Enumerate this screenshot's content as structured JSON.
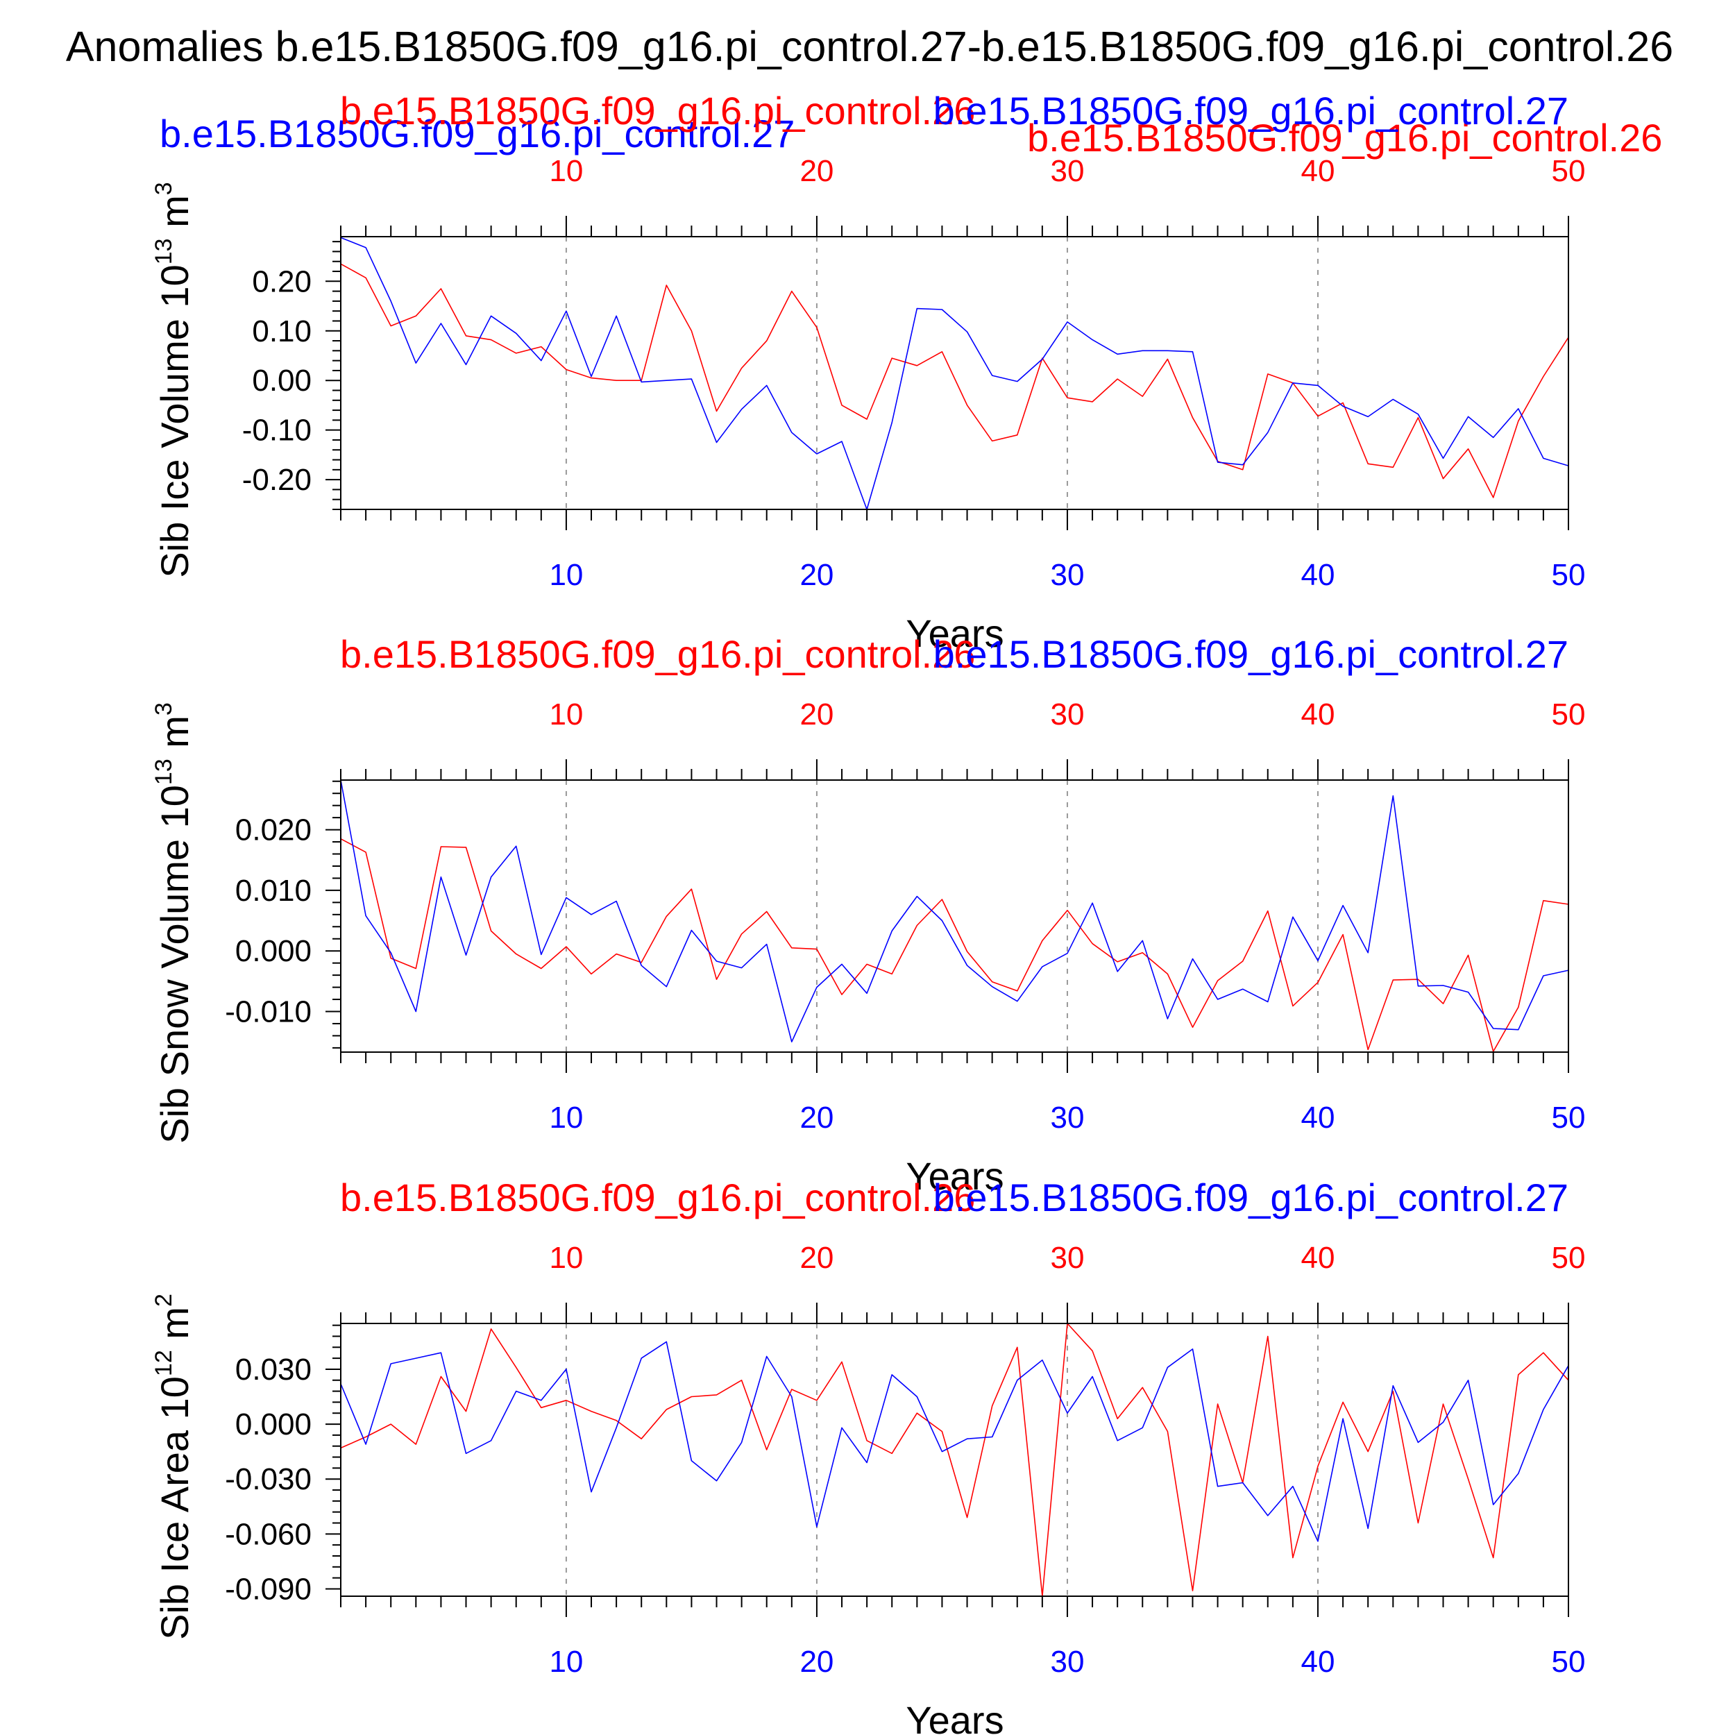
{
  "page_title": "Anomalies b.e15.B1850G.f09_g16.pi_control.27-b.e15.B1850G.f09_g16.pi_control.26",
  "top_overlay_label": "b.e15.B1850G.f09_g16.pi_control.27",
  "top_overlay_label_red": "b.e15.B1850G.f09_g16.pi_control.26",
  "colors": {
    "red_series": "#ff0000",
    "blue_series": "#0000ff",
    "axis": "#000000",
    "grid": "#999999"
  },
  "chart_data": [
    {
      "type": "line",
      "ylabel": "Sib Ice Volume 10",
      "yunit_exp": "13",
      "yunit_tail": "m",
      "yunit_tail_exp": "3",
      "xlabel": "Years",
      "xlim": [
        1,
        50
      ],
      "ylim": [
        -0.26,
        0.29
      ],
      "yticks": [
        -0.2,
        -0.1,
        0.0,
        0.1,
        0.2
      ],
      "ytick_labels": [
        "-0.20",
        "-0.10",
        "0.00",
        "0.10",
        "0.20"
      ],
      "xticks": [
        10,
        20,
        30,
        40,
        50
      ],
      "xtick_labels": [
        "10",
        "20",
        "30",
        "40",
        "50"
      ],
      "series": [
        {
          "name": "b.e15.B1850G.f09_g16.pi_control.26",
          "color": "#ff0000",
          "values": [
            0.235,
            0.207,
            0.11,
            0.13,
            0.185,
            0.09,
            0.082,
            0.055,
            0.068,
            0.022,
            0.005,
            0.0,
            0.0,
            0.192,
            0.1,
            -0.062,
            0.025,
            0.08,
            0.18,
            0.107,
            -0.05,
            -0.078,
            0.045,
            0.03,
            0.058,
            -0.05,
            -0.122,
            -0.11,
            0.045,
            -0.035,
            -0.043,
            0.003,
            -0.032,
            0.043,
            -0.075,
            -0.163,
            -0.18,
            0.013,
            -0.005,
            -0.072,
            -0.045,
            -0.168,
            -0.175,
            -0.075,
            -0.198,
            -0.138,
            -0.236,
            -0.082,
            0.008,
            0.087
          ]
        },
        {
          "name": "b.e15.B1850G.f09_g16.pi_control.27",
          "color": "#0000ff",
          "values": [
            0.288,
            0.268,
            0.16,
            0.035,
            0.115,
            0.032,
            0.13,
            0.095,
            0.04,
            0.14,
            0.008,
            0.13,
            -0.003,
            0.0,
            0.003,
            -0.125,
            -0.058,
            -0.01,
            -0.105,
            -0.148,
            -0.123,
            -0.26,
            -0.085,
            0.145,
            0.143,
            0.098,
            0.01,
            -0.002,
            0.043,
            0.118,
            0.082,
            0.053,
            0.06,
            0.06,
            0.058,
            -0.165,
            -0.17,
            -0.105,
            -0.005,
            -0.01,
            -0.052,
            -0.073,
            -0.038,
            -0.068,
            -0.157,
            -0.073,
            -0.115,
            -0.057,
            -0.157,
            -0.172
          ]
        }
      ]
    },
    {
      "type": "line",
      "ylabel": "Sib Snow Volume 10",
      "yunit_exp": "13",
      "yunit_tail": "m",
      "yunit_tail_exp": "3",
      "xlabel": "Years",
      "xlim": [
        1,
        50
      ],
      "ylim": [
        -0.0167,
        0.0282
      ],
      "yticks": [
        -0.01,
        0.0,
        0.01,
        0.02
      ],
      "ytick_labels": [
        "-0.010",
        "0.000",
        "0.010",
        "0.020"
      ],
      "xticks": [
        10,
        20,
        30,
        40,
        50
      ],
      "xtick_labels": [
        "10",
        "20",
        "30",
        "40",
        "50"
      ],
      "series": [
        {
          "name": "b.e15.B1850G.f09_g16.pi_control.26",
          "color": "#ff0000",
          "values": [
            0.0185,
            0.0163,
            -0.0012,
            -0.0029,
            0.0172,
            0.0171,
            0.0033,
            -0.0005,
            -0.0029,
            0.0007,
            -0.0038,
            -0.0005,
            -0.0019,
            0.0057,
            0.0102,
            -0.0047,
            0.0028,
            0.0065,
            0.0005,
            0.0003,
            -0.0072,
            -0.0022,
            -0.0038,
            0.0042,
            0.0085,
            -0.0001,
            -0.0051,
            -0.0066,
            0.0017,
            0.0067,
            0.0012,
            -0.0018,
            -0.0003,
            -0.0038,
            -0.0126,
            -0.0049,
            -0.0017,
            0.0066,
            -0.0091,
            -0.0052,
            0.0027,
            -0.0163,
            -0.0048,
            -0.0047,
            -0.0087,
            -0.0007,
            -0.0166,
            -0.0093,
            0.0083,
            0.0077
          ]
        },
        {
          "name": "b.e15.B1850G.f09_g16.pi_control.27",
          "color": "#0000ff",
          "values": [
            0.0282,
            0.0058,
            -0.0003,
            -0.01,
            0.0122,
            -0.0007,
            0.0122,
            0.0173,
            -0.0006,
            0.0088,
            0.006,
            0.0082,
            -0.0024,
            -0.0059,
            0.0034,
            -0.0017,
            -0.0028,
            0.0011,
            -0.015,
            -0.006,
            -0.0022,
            -0.007,
            0.0033,
            0.009,
            0.005,
            -0.0024,
            -0.0059,
            -0.0083,
            -0.0026,
            -0.0004,
            0.0079,
            -0.0034,
            0.0017,
            -0.0112,
            -0.0013,
            -0.008,
            -0.0063,
            -0.0084,
            0.0056,
            -0.0016,
            0.0075,
            -0.0003,
            0.0256,
            -0.0058,
            -0.0057,
            -0.0068,
            -0.0128,
            -0.013,
            -0.0041,
            -0.0032
          ]
        }
      ]
    },
    {
      "type": "line",
      "ylabel": "Sib Ice Area 10",
      "yunit_exp": "12",
      "yunit_tail": "m",
      "yunit_tail_exp": "2",
      "xlabel": "Years",
      "xlim": [
        1,
        50
      ],
      "ylim": [
        -0.094,
        0.055
      ],
      "yticks": [
        -0.09,
        -0.06,
        -0.03,
        0.0,
        0.03
      ],
      "ytick_labels": [
        "-0.090",
        "-0.060",
        "-0.030",
        "0.000",
        "0.030"
      ],
      "xticks": [
        10,
        20,
        30,
        40,
        50
      ],
      "xtick_labels": [
        "10",
        "20",
        "30",
        "40",
        "50"
      ],
      "series": [
        {
          "name": "b.e15.B1850G.f09_g16.pi_control.26",
          "color": "#ff0000",
          "values": [
            -0.013,
            -0.007,
            0.0,
            -0.011,
            0.026,
            0.007,
            0.052,
            0.031,
            0.009,
            0.013,
            0.007,
            0.002,
            -0.008,
            0.008,
            0.015,
            0.016,
            0.024,
            -0.014,
            0.019,
            0.013,
            0.034,
            -0.009,
            -0.016,
            0.006,
            -0.004,
            -0.051,
            0.01,
            0.042,
            -0.094,
            0.055,
            0.04,
            0.003,
            0.02,
            -0.004,
            -0.091,
            0.011,
            -0.032,
            0.048,
            -0.073,
            -0.023,
            0.012,
            -0.015,
            0.018,
            -0.054,
            0.011,
            -0.03,
            -0.073,
            0.027,
            0.039,
            0.024
          ]
        },
        {
          "name": "b.e15.B1850G.f09_g16.pi_control.27",
          "color": "#0000ff",
          "values": [
            0.022,
            -0.011,
            0.033,
            0.036,
            0.039,
            -0.016,
            -0.009,
            0.018,
            0.013,
            0.03,
            -0.037,
            -0.002,
            0.036,
            0.045,
            -0.02,
            -0.031,
            -0.01,
            0.037,
            0.015,
            -0.056,
            -0.002,
            -0.021,
            0.027,
            0.015,
            -0.015,
            -0.008,
            -0.007,
            0.024,
            0.035,
            0.006,
            0.026,
            -0.009,
            -0.002,
            0.031,
            0.041,
            -0.034,
            -0.032,
            -0.05,
            -0.034,
            -0.064,
            0.003,
            -0.057,
            0.021,
            -0.01,
            0.001,
            0.024,
            -0.044,
            -0.027,
            0.008,
            0.032
          ]
        }
      ]
    }
  ]
}
